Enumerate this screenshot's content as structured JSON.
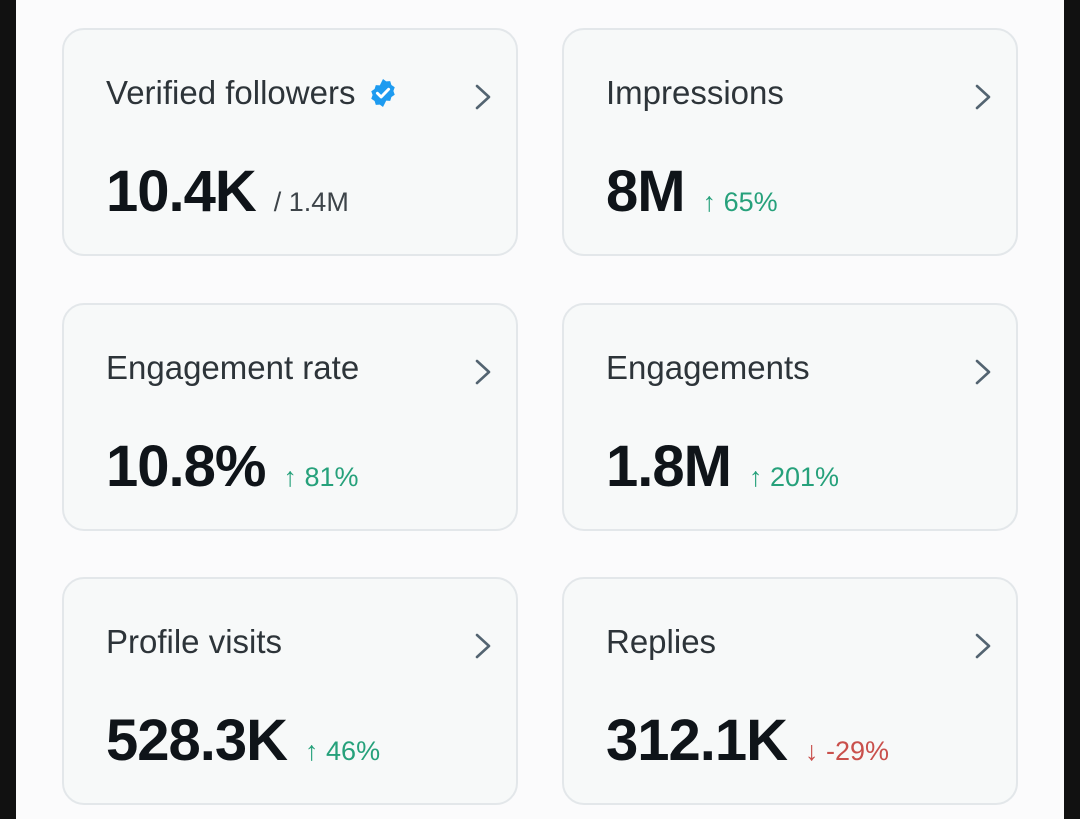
{
  "colors": {
    "accent_up": "#26a17b",
    "accent_down": "#c9504c",
    "verified": "#1d9bf0"
  },
  "cards": [
    {
      "title": "Verified followers",
      "value": "10.4K",
      "sub": "/ 1.4M",
      "badge_icon": "verified-badge-icon",
      "chevron_icon": "chevron-right-icon"
    },
    {
      "title": "Impressions",
      "value": "8M",
      "delta": "↑ 65%",
      "chevron_icon": "chevron-right-icon"
    },
    {
      "title": "Engagement rate",
      "value": "10.8%",
      "delta": "↑ 81%",
      "chevron_icon": "chevron-right-icon"
    },
    {
      "title": "Engagements",
      "value": "1.8M",
      "delta": "↑ 201%",
      "chevron_icon": "chevron-right-icon"
    },
    {
      "title": "Profile visits",
      "value": "528.3K",
      "delta": "↑ 46%",
      "chevron_icon": "chevron-right-icon"
    },
    {
      "title": "Replies",
      "value": "312.1K",
      "delta": "↓ -29%",
      "chevron_icon": "chevron-right-icon"
    }
  ]
}
